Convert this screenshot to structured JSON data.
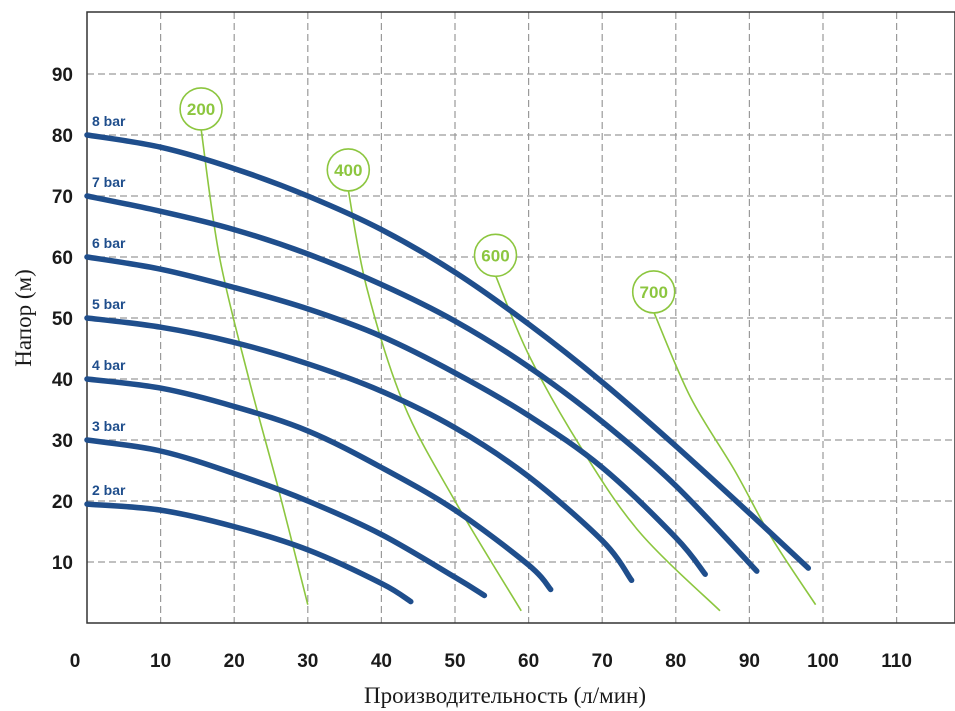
{
  "chart_data": {
    "type": "line",
    "xlabel": "Производительность (л/мин)",
    "ylabel": "Напор (м)",
    "xlim": [
      0,
      118
    ],
    "ylim": [
      0,
      100
    ],
    "x_ticks": [
      "0",
      "10",
      "20",
      "30",
      "40",
      "50",
      "60",
      "70",
      "80",
      "90",
      "100",
      "110"
    ],
    "y_ticks": [
      "10",
      "20",
      "30",
      "40",
      "50",
      "60",
      "70",
      "80",
      "90"
    ],
    "grid": true,
    "pressure_color": "#1f4e8c",
    "consumption_color": "#8cc63f",
    "series": [
      {
        "name": "2 bar",
        "x": [
          0,
          10,
          20,
          30,
          40,
          44
        ],
        "y": [
          19.5,
          18.5,
          15.8,
          12,
          6.5,
          3.5
        ]
      },
      {
        "name": "3 bar",
        "x": [
          0,
          10,
          20,
          30,
          40,
          50,
          54
        ],
        "y": [
          30,
          28.2,
          24.5,
          20,
          14.5,
          7.5,
          4.5
        ]
      },
      {
        "name": "4 bar",
        "x": [
          0,
          10,
          20,
          30,
          40,
          50,
          60,
          63
        ],
        "y": [
          40,
          38.5,
          35.5,
          31.5,
          25.5,
          18.5,
          9.5,
          5.5
        ]
      },
      {
        "name": "5 bar",
        "x": [
          0,
          10,
          20,
          30,
          40,
          50,
          60,
          70,
          74
        ],
        "y": [
          50,
          48.5,
          46,
          42.5,
          38,
          32,
          24,
          13.5,
          7
        ]
      },
      {
        "name": "6 bar",
        "x": [
          0,
          10,
          20,
          30,
          40,
          50,
          60,
          70,
          80,
          84
        ],
        "y": [
          60,
          58,
          55,
          51.5,
          47,
          41,
          34,
          25.5,
          14,
          8
        ]
      },
      {
        "name": "7 bar",
        "x": [
          0,
          10,
          20,
          30,
          40,
          50,
          60,
          70,
          80,
          91
        ],
        "y": [
          70,
          67.5,
          64.5,
          60.5,
          55.5,
          49.5,
          42,
          33,
          22.5,
          8.5
        ]
      },
      {
        "name": "8 bar",
        "x": [
          0,
          10,
          20,
          30,
          40,
          50,
          60,
          70,
          80,
          90,
          98
        ],
        "y": [
          80,
          78,
          74.5,
          70,
          64.5,
          57.5,
          49,
          39.5,
          29,
          18,
          9
        ]
      }
    ],
    "consumption_curves": [
      {
        "name": "200",
        "x": [
          15.5,
          18,
          22,
          26,
          30
        ],
        "y": [
          81,
          60,
          40,
          22,
          3
        ]
      },
      {
        "name": "400",
        "x": [
          35.5,
          38,
          43,
          50,
          59
        ],
        "y": [
          71,
          55,
          36,
          20,
          2
        ]
      },
      {
        "name": "600",
        "x": [
          55.5,
          60,
          67,
          75,
          86
        ],
        "y": [
          57,
          44,
          29,
          15,
          2
        ]
      },
      {
        "name": "700",
        "x": [
          77,
          82,
          88,
          93,
          99
        ],
        "y": [
          51,
          37,
          25,
          14,
          3
        ]
      }
    ]
  }
}
